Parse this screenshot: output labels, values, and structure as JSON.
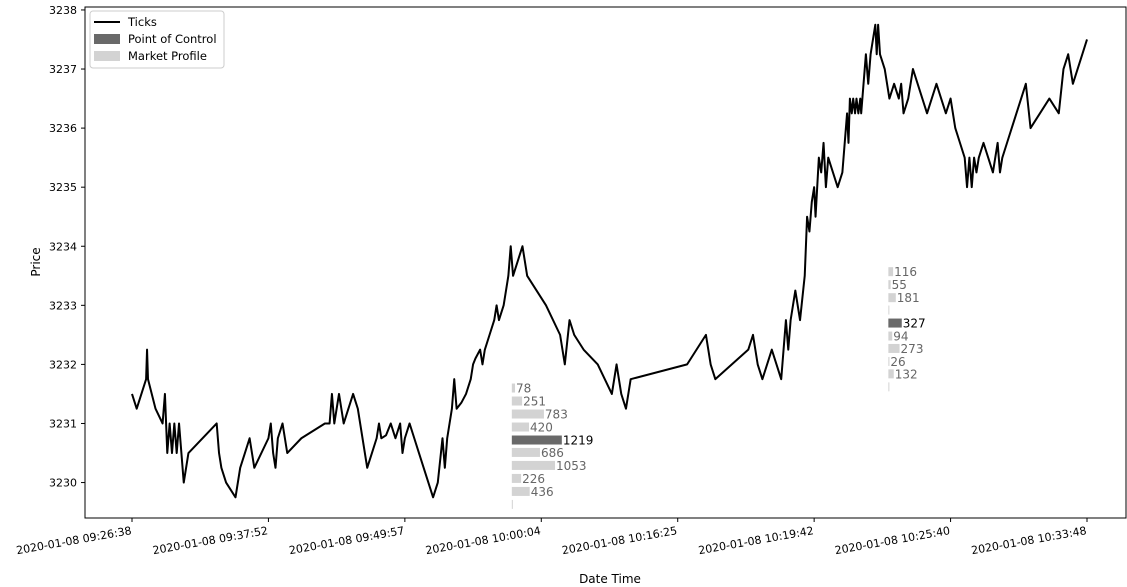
{
  "chart_data": {
    "type": "line",
    "xlabel": "Date Time",
    "ylabel": "Price",
    "ylim": [
      3229.4,
      3238.05
    ],
    "yticks": [
      3230,
      3231,
      3232,
      3233,
      3234,
      3235,
      3236,
      3237,
      3238
    ],
    "x_categorical_index_range": [
      -4,
      174
    ],
    "x_ticks": [
      {
        "index": 0,
        "label": "2020-01-08 09:26:38"
      },
      {
        "index": 25,
        "label": "2020-01-08 09:37:52"
      },
      {
        "index": 50,
        "label": "2020-01-08 09:49:57"
      },
      {
        "index": 75,
        "label": "2020-01-08 10:00:04"
      },
      {
        "index": 100,
        "label": "2020-01-08 10:16:25"
      },
      {
        "index": 125,
        "label": "2020-01-08 10:19:42"
      },
      {
        "index": 150,
        "label": "2020-01-08 10:25:40"
      },
      {
        "index": 175,
        "label": "2020-01-08 10:33:48"
      }
    ],
    "grid": false,
    "legend_position": "top-left",
    "legend": [
      {
        "label": "Ticks",
        "kind": "line",
        "color": "#000000"
      },
      {
        "label": "Point of Control",
        "kind": "patch",
        "color": "#696969"
      },
      {
        "label": "Market Profile",
        "kind": "patch",
        "color": "#d3d3d3"
      }
    ],
    "series": [
      {
        "name": "Ticks",
        "color": "#000000",
        "points": [
          [
            0,
            3231.5
          ],
          [
            1,
            3231.25
          ],
          [
            3,
            3231.75
          ],
          [
            3.2,
            3232.25
          ],
          [
            3.4,
            3231.75
          ],
          [
            5,
            3231.25
          ],
          [
            6.5,
            3231.0
          ],
          [
            7,
            3231.5
          ],
          [
            7.5,
            3230.5
          ],
          [
            8,
            3231.0
          ],
          [
            8.5,
            3230.5
          ],
          [
            9,
            3231.0
          ],
          [
            9.5,
            3230.5
          ],
          [
            10,
            3231.0
          ],
          [
            11,
            3230.0
          ],
          [
            11.5,
            3230.25
          ],
          [
            12,
            3230.5
          ],
          [
            18,
            3231.0
          ],
          [
            18.5,
            3230.5
          ],
          [
            19,
            3230.25
          ],
          [
            20,
            3230.0
          ],
          [
            22,
            3229.75
          ],
          [
            23,
            3230.25
          ],
          [
            24,
            3230.5
          ],
          [
            25,
            3230.75
          ],
          [
            25.5,
            3230.5
          ],
          [
            26,
            3230.25
          ],
          [
            29,
            3230.75
          ],
          [
            29.5,
            3231.0
          ],
          [
            30,
            3230.5
          ],
          [
            30.5,
            3230.25
          ],
          [
            31,
            3230.75
          ],
          [
            32,
            3231.0
          ],
          [
            33,
            3230.5
          ],
          [
            36,
            3230.75
          ],
          [
            41,
            3231.0
          ],
          [
            42,
            3231.0
          ],
          [
            42.5,
            3231.5
          ],
          [
            43,
            3231.0
          ],
          [
            43.5,
            3231.25
          ],
          [
            44,
            3231.5
          ],
          [
            45,
            3231.0
          ],
          [
            47,
            3231.5
          ],
          [
            48,
            3231.25
          ],
          [
            50,
            3230.25
          ],
          [
            51,
            3230.5
          ],
          [
            52,
            3230.75
          ],
          [
            52.5,
            3231.0
          ],
          [
            53,
            3230.75
          ],
          [
            54,
            3230.8
          ],
          [
            55,
            3231.0
          ],
          [
            56,
            3230.75
          ],
          [
            57,
            3231.0
          ],
          [
            57.5,
            3230.5
          ],
          [
            58,
            3230.75
          ],
          [
            59,
            3231.0
          ],
          [
            60,
            3230.75
          ],
          [
            61,
            3230.5
          ],
          [
            62,
            3230.25
          ],
          [
            63,
            3230.0
          ],
          [
            64,
            3229.75
          ],
          [
            65,
            3230.0
          ],
          [
            66,
            3230.75
          ],
          [
            66.5,
            3230.25
          ],
          [
            67,
            3230.75
          ],
          [
            68,
            3231.25
          ],
          [
            68.5,
            3231.75
          ],
          [
            69,
            3231.25
          ],
          [
            70,
            3231.35
          ],
          [
            71,
            3231.5
          ],
          [
            72,
            3231.75
          ],
          [
            72.5,
            3232.0
          ],
          [
            73,
            3232.1
          ],
          [
            74,
            3232.25
          ],
          [
            74.5,
            3232.0
          ],
          [
            75,
            3232.25
          ],
          [
            76,
            3232.5
          ],
          [
            77,
            3232.75
          ],
          [
            77.5,
            3233.0
          ],
          [
            78,
            3232.75
          ],
          [
            79,
            3233.0
          ],
          [
            80,
            3233.5
          ],
          [
            80.5,
            3234.0
          ],
          [
            81,
            3233.5
          ],
          [
            82,
            3233.75
          ],
          [
            83,
            3234.0
          ],
          [
            84,
            3233.5
          ],
          [
            86,
            3233.25
          ],
          [
            88,
            3233.0
          ],
          [
            91,
            3232.5
          ],
          [
            92,
            3232.0
          ],
          [
            93,
            3232.75
          ],
          [
            94,
            3232.5
          ],
          [
            96,
            3232.25
          ],
          [
            99,
            3232.0
          ],
          [
            102,
            3231.5
          ],
          [
            102.5,
            3231.75
          ],
          [
            103,
            3232.0
          ],
          [
            104,
            3231.5
          ],
          [
            105,
            3231.25
          ],
          [
            106,
            3231.75
          ],
          [
            118,
            3232.0
          ],
          [
            122,
            3232.5
          ],
          [
            123,
            3232.0
          ],
          [
            124,
            3231.75
          ],
          [
            131,
            3232.25
          ],
          [
            132,
            3232.5
          ],
          [
            133,
            3232.0
          ],
          [
            134,
            3231.75
          ],
          [
            136,
            3232.25
          ],
          [
            138,
            3231.75
          ],
          [
            139,
            3232.75
          ],
          [
            139.5,
            3232.25
          ],
          [
            140,
            3232.75
          ],
          [
            141,
            3233.25
          ],
          [
            142,
            3232.75
          ],
          [
            143,
            3233.5
          ],
          [
            143.5,
            3234.5
          ],
          [
            144,
            3234.25
          ],
          [
            144.5,
            3234.75
          ],
          [
            145,
            3235.0
          ],
          [
            145.3,
            3234.5
          ],
          [
            146,
            3235.5
          ],
          [
            146.5,
            3235.25
          ],
          [
            147,
            3235.75
          ],
          [
            147.5,
            3235.0
          ],
          [
            148,
            3235.5
          ],
          [
            149,
            3235.25
          ],
          [
            150,
            3235.0
          ],
          [
            151,
            3235.25
          ],
          [
            152,
            3236.25
          ],
          [
            152.3,
            3235.75
          ],
          [
            152.6,
            3236.5
          ],
          [
            153,
            3236.25
          ],
          [
            153.3,
            3236.5
          ],
          [
            153.7,
            3236.25
          ],
          [
            154,
            3236.5
          ],
          [
            154.4,
            3236.25
          ],
          [
            154.8,
            3236.5
          ],
          [
            155,
            3236.25
          ],
          [
            155.5,
            3236.75
          ],
          [
            156,
            3237.25
          ],
          [
            156.5,
            3236.75
          ],
          [
            157,
            3237.25
          ],
          [
            157.5,
            3237.5
          ],
          [
            158,
            3237.75
          ],
          [
            158.3,
            3237.25
          ],
          [
            158.6,
            3237.75
          ],
          [
            159,
            3237.25
          ],
          [
            160,
            3237.0
          ],
          [
            161,
            3236.5
          ],
          [
            162,
            3236.75
          ],
          [
            163,
            3236.5
          ],
          [
            163.5,
            3236.75
          ],
          [
            164,
            3236.25
          ],
          [
            165,
            3236.5
          ],
          [
            166,
            3237.0
          ],
          [
            168,
            3236.5
          ],
          [
            169,
            3236.25
          ],
          [
            170,
            3236.5
          ],
          [
            171,
            3236.75
          ],
          [
            172,
            3236.5
          ],
          [
            173,
            3236.25
          ],
          [
            174,
            3236.5
          ],
          [
            175,
            3236.0
          ],
          [
            176,
            3235.75
          ],
          [
            177,
            3235.5
          ],
          [
            177.5,
            3235.0
          ],
          [
            178,
            3235.5
          ],
          [
            178.5,
            3235.0
          ],
          [
            179,
            3235.5
          ],
          [
            179.5,
            3235.25
          ],
          [
            180,
            3235.5
          ],
          [
            181,
            3235.75
          ],
          [
            182,
            3235.5
          ],
          [
            183,
            3235.25
          ],
          [
            184,
            3235.75
          ],
          [
            184.5,
            3235.25
          ],
          [
            185,
            3235.5
          ],
          [
            186,
            3235.75
          ],
          [
            187,
            3236.0
          ],
          [
            188,
            3236.25
          ],
          [
            189,
            3236.5
          ],
          [
            190,
            3236.75
          ],
          [
            191,
            3236.0
          ],
          [
            193,
            3236.25
          ],
          [
            195,
            3236.5
          ],
          [
            197,
            3236.25
          ],
          [
            198,
            3237.0
          ],
          [
            199,
            3237.25
          ],
          [
            200,
            3236.75
          ],
          [
            201,
            3237.0
          ],
          [
            202,
            3237.25
          ],
          [
            203,
            3237.5
          ]
        ]
      }
    ],
    "profiles": [
      {
        "anchor_index": 69.6,
        "levels": [
          {
            "price": 3231.6,
            "count": 78,
            "label": "78"
          },
          {
            "price": 3231.38,
            "count": 251,
            "label": "251"
          },
          {
            "price": 3231.16,
            "count": 783,
            "label": "783"
          },
          {
            "price": 3230.94,
            "count": 420,
            "label": "420"
          },
          {
            "price": 3230.72,
            "count": 1219,
            "label": "1219",
            "poc": true
          },
          {
            "price": 3230.51,
            "count": 686,
            "label": "686"
          },
          {
            "price": 3230.29,
            "count": 1053,
            "label": "1053"
          },
          {
            "price": 3230.07,
            "count": 226,
            "label": "226"
          },
          {
            "price": 3229.85,
            "count": 436,
            "label": "436"
          },
          {
            "price": 3229.63,
            "count": 1,
            "label": ""
          }
        ]
      },
      {
        "anchor_index": 138.6,
        "levels": [
          {
            "price": 3233.57,
            "count": 116,
            "label": "116"
          },
          {
            "price": 3233.35,
            "count": 55,
            "label": "55"
          },
          {
            "price": 3233.13,
            "count": 181,
            "label": "181"
          },
          {
            "price": 3232.92,
            "count": 1,
            "label": ""
          },
          {
            "price": 3232.7,
            "count": 327,
            "label": "327",
            "poc": true
          },
          {
            "price": 3232.48,
            "count": 94,
            "label": "94"
          },
          {
            "price": 3232.27,
            "count": 273,
            "label": "273"
          },
          {
            "price": 3232.05,
            "count": 26,
            "label": "26"
          },
          {
            "price": 3231.84,
            "count": 132,
            "label": "132"
          },
          {
            "price": 3231.62,
            "count": 1,
            "label": ""
          }
        ]
      }
    ]
  }
}
